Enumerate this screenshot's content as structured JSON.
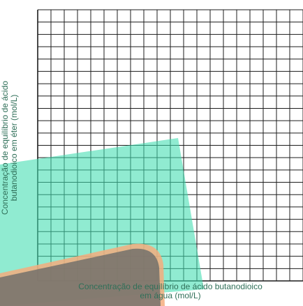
{
  "chart_data": {
    "type": "scatter",
    "title": "",
    "xlabel_line1": "Concentração de equilíbrio de ácido butanodioico",
    "xlabel_line2": "em água (mol/L)",
    "ylabel_line1": "Concentração de equilíbrio de ácido",
    "ylabel_line2": "butanodioico em éter (mol/L)",
    "series": [],
    "grid": true,
    "grid_columns": 20,
    "grid_rows": 22,
    "colors": {
      "grid": "#1c1c1c",
      "label": "#2f6f58",
      "teal_overlay": "#3fdcaf",
      "orange_overlay": "#f5ad7e",
      "dark_overlay": "#6e6e6a"
    }
  }
}
